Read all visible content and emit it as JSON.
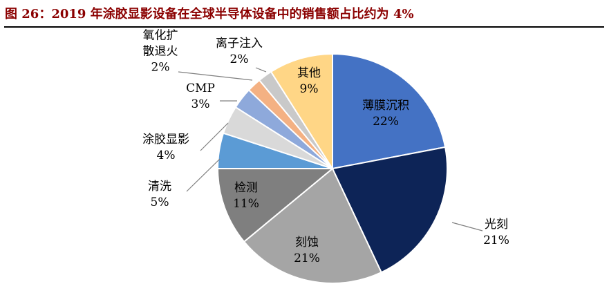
{
  "figure": {
    "title": "图 26：2019 年涂胶显影设备在全球半导体设备中的销售额占比约为 4%"
  },
  "chart_data": {
    "type": "pie",
    "unit": "%",
    "start_angle_deg": 0,
    "direction": "clockwise",
    "slices": [
      {
        "name": "薄膜沉积",
        "value": 22,
        "value_label": "22%",
        "color": "#4472C4",
        "label_style": "inside",
        "text_color": "#000000"
      },
      {
        "name": "光刻",
        "value": 21,
        "value_label": "21%",
        "color": "#0D2457",
        "label_style": "outside",
        "text_color": "#000000"
      },
      {
        "name": "刻蚀",
        "value": 21,
        "value_label": "21%",
        "color": "#A5A5A5",
        "label_style": "inside",
        "text_color": "#000000"
      },
      {
        "name": "检测",
        "value": 11,
        "value_label": "11%",
        "color": "#7F7F7F",
        "label_style": "inside",
        "text_color": "#000000"
      },
      {
        "name": "清洗",
        "value": 5,
        "value_label": "5%",
        "color": "#5B9BD5",
        "label_style": "outside",
        "text_color": "#000000"
      },
      {
        "name": "涂胶显影",
        "value": 4,
        "value_label": "4%",
        "color": "#D9D9D9",
        "label_style": "outside",
        "text_color": "#000000"
      },
      {
        "name": "CMP",
        "value": 3,
        "value_label": "3%",
        "color": "#8EA9DB",
        "label_style": "outside",
        "text_color": "#000000"
      },
      {
        "name": "氧化扩散退火",
        "name_lines": [
          "氧化扩",
          "散退火"
        ],
        "value": 2,
        "value_label": "2%",
        "color": "#F4B183",
        "label_style": "outside",
        "text_color": "#000000"
      },
      {
        "name": "离子注入",
        "value": 2,
        "value_label": "2%",
        "color": "#C9C9C9",
        "label_style": "outside",
        "text_color": "#000000"
      },
      {
        "name": "其他",
        "value": 9,
        "value_label": "9%",
        "color": "#FFD686",
        "label_style": "inside",
        "text_color": "#000000"
      }
    ]
  }
}
